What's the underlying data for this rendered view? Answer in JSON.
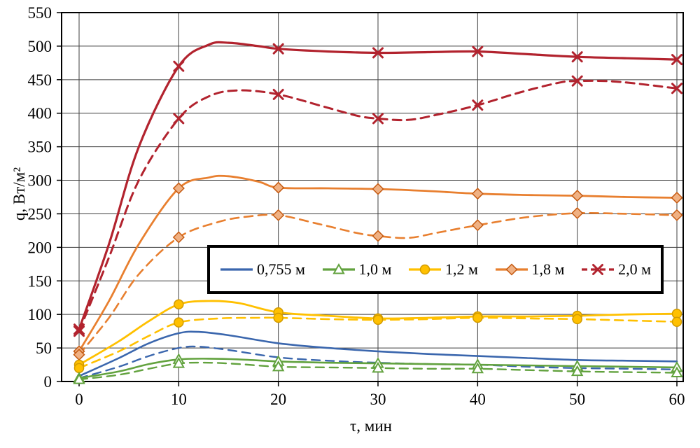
{
  "axis": {
    "x_title": "τ, мин",
    "y_title": "q, Вт/м²"
  },
  "chart_data": {
    "type": "line",
    "title": "",
    "xlabel": "τ, мин",
    "ylabel": "q, Вт/м²",
    "xlim": [
      0,
      60
    ],
    "ylim": [
      0,
      550
    ],
    "xticks": [
      0,
      10,
      20,
      30,
      40,
      50,
      60
    ],
    "yticks": [
      0,
      50,
      100,
      150,
      200,
      250,
      300,
      350,
      400,
      450,
      500,
      550
    ],
    "grid": true,
    "legend_position": "inside-middle",
    "marker_x": [
      0,
      10,
      20,
      30,
      40,
      50,
      60
    ],
    "series": [
      {
        "id": "2-0-solid",
        "label": "2,0 м",
        "variant": "solid",
        "color": "#b2232e",
        "dash": "solid",
        "width": 3.2,
        "marker": "x",
        "marker_fill": "none",
        "marker_stroke": "#b2232e",
        "points": [
          [
            0,
            78
          ],
          [
            3,
            205
          ],
          [
            6,
            350
          ],
          [
            10,
            470
          ],
          [
            13,
            502
          ],
          [
            15,
            505
          ],
          [
            18,
            500
          ],
          [
            20,
            496
          ],
          [
            25,
            492
          ],
          [
            30,
            490
          ],
          [
            35,
            491
          ],
          [
            40,
            492
          ],
          [
            45,
            488
          ],
          [
            50,
            484
          ],
          [
            55,
            482
          ],
          [
            60,
            480
          ]
        ]
      },
      {
        "id": "2-0-dashed",
        "label": "2,0 м",
        "variant": "dashed",
        "color": "#b2232e",
        "dash": "dashed",
        "width": 3,
        "marker": "x",
        "marker_fill": "none",
        "marker_stroke": "#b2232e",
        "points": [
          [
            0,
            75
          ],
          [
            3,
            185
          ],
          [
            6,
            300
          ],
          [
            10,
            392
          ],
          [
            13,
            425
          ],
          [
            16,
            434
          ],
          [
            20,
            428
          ],
          [
            25,
            408
          ],
          [
            28,
            396
          ],
          [
            30,
            392
          ],
          [
            33,
            390
          ],
          [
            36,
            398
          ],
          [
            40,
            412
          ],
          [
            44,
            430
          ],
          [
            48,
            445
          ],
          [
            50,
            448
          ],
          [
            54,
            447
          ],
          [
            60,
            437
          ]
        ]
      },
      {
        "id": "1-8-solid",
        "label": "1,8 м",
        "variant": "solid",
        "color": "#e87f2f",
        "dash": "solid",
        "width": 2.8,
        "marker": "diamond",
        "marker_fill": "#f0b183",
        "marker_stroke": "#c55a11",
        "points": [
          [
            0,
            45
          ],
          [
            3,
            120
          ],
          [
            6,
            205
          ],
          [
            10,
            288
          ],
          [
            13,
            304
          ],
          [
            15,
            306
          ],
          [
            18,
            298
          ],
          [
            20,
            289
          ],
          [
            25,
            288
          ],
          [
            30,
            287
          ],
          [
            35,
            284
          ],
          [
            40,
            280
          ],
          [
            45,
            278
          ],
          [
            50,
            277
          ],
          [
            55,
            275
          ],
          [
            60,
            274
          ]
        ]
      },
      {
        "id": "1-8-dashed",
        "label": "1,8 м",
        "variant": "dashed",
        "color": "#e87f2f",
        "dash": "dashed",
        "width": 2.6,
        "marker": "diamond",
        "marker_fill": "#f0b183",
        "marker_stroke": "#c55a11",
        "points": [
          [
            0,
            40
          ],
          [
            3,
            95
          ],
          [
            6,
            160
          ],
          [
            10,
            215
          ],
          [
            14,
            238
          ],
          [
            17,
            246
          ],
          [
            20,
            248
          ],
          [
            24,
            235
          ],
          [
            28,
            221
          ],
          [
            30,
            217
          ],
          [
            33,
            214
          ],
          [
            36,
            222
          ],
          [
            40,
            233
          ],
          [
            45,
            245
          ],
          [
            50,
            251
          ],
          [
            55,
            250
          ],
          [
            60,
            248
          ]
        ]
      },
      {
        "id": "1-2-solid",
        "label": "1,2 м",
        "variant": "solid",
        "color": "#ffc000",
        "dash": "solid",
        "width": 2.8,
        "marker": "circle",
        "marker_fill": "#ffc000",
        "marker_stroke": "#d29b00",
        "points": [
          [
            0,
            25
          ],
          [
            4,
            60
          ],
          [
            7,
            90
          ],
          [
            10,
            115
          ],
          [
            13,
            120
          ],
          [
            16,
            117
          ],
          [
            20,
            103
          ],
          [
            25,
            98
          ],
          [
            30,
            94
          ],
          [
            35,
            95
          ],
          [
            40,
            97
          ],
          [
            45,
            97
          ],
          [
            50,
            98
          ],
          [
            55,
            100
          ],
          [
            60,
            101
          ]
        ]
      },
      {
        "id": "1-2-dashed",
        "label": "1,2 м",
        "variant": "dashed",
        "color": "#ffc000",
        "dash": "dashed",
        "width": 2.6,
        "marker": "circle",
        "marker_fill": "#ffc000",
        "marker_stroke": "#d29b00",
        "points": [
          [
            0,
            20
          ],
          [
            4,
            45
          ],
          [
            7,
            68
          ],
          [
            10,
            88
          ],
          [
            14,
            94
          ],
          [
            18,
            95
          ],
          [
            20,
            95
          ],
          [
            25,
            93
          ],
          [
            30,
            92
          ],
          [
            35,
            93
          ],
          [
            40,
            95
          ],
          [
            45,
            94
          ],
          [
            50,
            93
          ],
          [
            55,
            91
          ],
          [
            60,
            89
          ]
        ]
      },
      {
        "id": "0-755-solid",
        "label": "0,755 м",
        "variant": "solid",
        "color": "#3a66ad",
        "dash": "solid",
        "width": 2.6,
        "marker": "none",
        "marker_fill": "none",
        "marker_stroke": "#3a66ad",
        "points": [
          [
            0,
            8
          ],
          [
            4,
            35
          ],
          [
            7,
            57
          ],
          [
            10,
            72
          ],
          [
            12,
            74
          ],
          [
            15,
            69
          ],
          [
            20,
            57
          ],
          [
            25,
            50
          ],
          [
            30,
            45
          ],
          [
            35,
            41
          ],
          [
            40,
            38
          ],
          [
            45,
            35
          ],
          [
            50,
            32
          ],
          [
            55,
            31
          ],
          [
            60,
            30
          ]
        ]
      },
      {
        "id": "0-755-dashed",
        "label": "0,755 м",
        "variant": "dashed",
        "color": "#3a66ad",
        "dash": "dashed",
        "width": 2.4,
        "marker": "none",
        "marker_fill": "none",
        "marker_stroke": "#3a66ad",
        "points": [
          [
            0,
            5
          ],
          [
            4,
            22
          ],
          [
            7,
            38
          ],
          [
            10,
            50
          ],
          [
            12,
            52
          ],
          [
            15,
            47
          ],
          [
            20,
            36
          ],
          [
            25,
            31
          ],
          [
            30,
            28
          ],
          [
            35,
            26
          ],
          [
            40,
            25
          ],
          [
            45,
            22
          ],
          [
            50,
            20
          ],
          [
            55,
            19
          ],
          [
            60,
            18
          ]
        ]
      },
      {
        "id": "1-0-solid",
        "label": "1,0 м",
        "variant": "solid",
        "color": "#62a23e",
        "dash": "solid",
        "width": 2.6,
        "marker": "triangle",
        "marker_fill": "#ffffff",
        "marker_stroke": "#62a23e",
        "points": [
          [
            0,
            5
          ],
          [
            4,
            15
          ],
          [
            7,
            26
          ],
          [
            10,
            33
          ],
          [
            13,
            34
          ],
          [
            16,
            33
          ],
          [
            20,
            30
          ],
          [
            25,
            28
          ],
          [
            30,
            27
          ],
          [
            35,
            26
          ],
          [
            40,
            25
          ],
          [
            45,
            24
          ],
          [
            50,
            23
          ],
          [
            55,
            22
          ],
          [
            60,
            21
          ]
        ]
      },
      {
        "id": "1-0-dashed",
        "label": "1,0 м",
        "variant": "dashed",
        "color": "#62a23e",
        "dash": "dashed",
        "width": 2.4,
        "marker": "triangle",
        "marker_fill": "#ffffff",
        "marker_stroke": "#62a23e",
        "points": [
          [
            0,
            3
          ],
          [
            4,
            10
          ],
          [
            7,
            19
          ],
          [
            10,
            27
          ],
          [
            13,
            28
          ],
          [
            16,
            26
          ],
          [
            20,
            22
          ],
          [
            25,
            21
          ],
          [
            30,
            20
          ],
          [
            35,
            19
          ],
          [
            40,
            19
          ],
          [
            45,
            17
          ],
          [
            50,
            15
          ],
          [
            55,
            14
          ],
          [
            60,
            13
          ]
        ]
      }
    ],
    "legend": [
      {
        "label": "0,755 м",
        "color": "#3a66ad",
        "dash": "solid",
        "marker": "none",
        "marker_fill": "none",
        "marker_stroke": "#3a66ad"
      },
      {
        "label": "1,0 м",
        "color": "#62a23e",
        "dash": "solid",
        "marker": "triangle",
        "marker_fill": "#ffffff",
        "marker_stroke": "#62a23e"
      },
      {
        "label": "1,2 м",
        "color": "#ffc000",
        "dash": "solid",
        "marker": "circle",
        "marker_fill": "#ffc000",
        "marker_stroke": "#d29b00"
      },
      {
        "label": "1,8 м",
        "color": "#e87f2f",
        "dash": "solid",
        "marker": "diamond",
        "marker_fill": "#f0b183",
        "marker_stroke": "#c55a11"
      },
      {
        "label": "2,0 м",
        "color": "#b2232e",
        "dash": "dashed",
        "marker": "x",
        "marker_fill": "none",
        "marker_stroke": "#b2232e"
      }
    ]
  }
}
